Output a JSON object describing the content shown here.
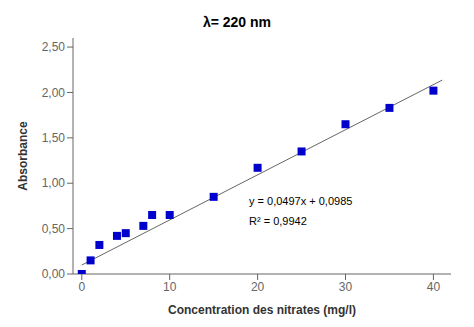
{
  "chart_data": {
    "type": "scatter",
    "title": "λ= 220 nm",
    "xlabel": "Concentration des nitrates (mg/l)",
    "ylabel": "Absorbance",
    "x": [
      0,
      1,
      2,
      4,
      5,
      7,
      8,
      10,
      15,
      20,
      25,
      30,
      35,
      40
    ],
    "values": [
      0.0,
      0.15,
      0.32,
      0.42,
      0.45,
      0.53,
      0.65,
      0.65,
      0.85,
      1.17,
      1.35,
      1.65,
      1.83,
      2.02
    ],
    "color": "#0000CC",
    "marker": "square",
    "trendline": {
      "x": [
        0,
        41
      ],
      "values": [
        0.0985,
        2.1362
      ],
      "color": "#666666"
    },
    "annotations": [
      "y = 0,0497x + 0,0985",
      "R² = 0,9942"
    ],
    "xlim": [
      -1,
      42
    ],
    "ylim": [
      0.0,
      2.6
    ],
    "xticks": [
      0,
      10,
      20,
      30,
      40
    ],
    "yticks": [
      {
        "value": 0.0,
        "label": "0,00"
      },
      {
        "value": 0.5,
        "label": "0,50"
      },
      {
        "value": 1.0,
        "label": "1,00"
      },
      {
        "value": 1.5,
        "label": "1,50"
      },
      {
        "value": 2.0,
        "label": "2,00"
      },
      {
        "value": 2.5,
        "label": "2,50"
      }
    ],
    "grid": false
  }
}
